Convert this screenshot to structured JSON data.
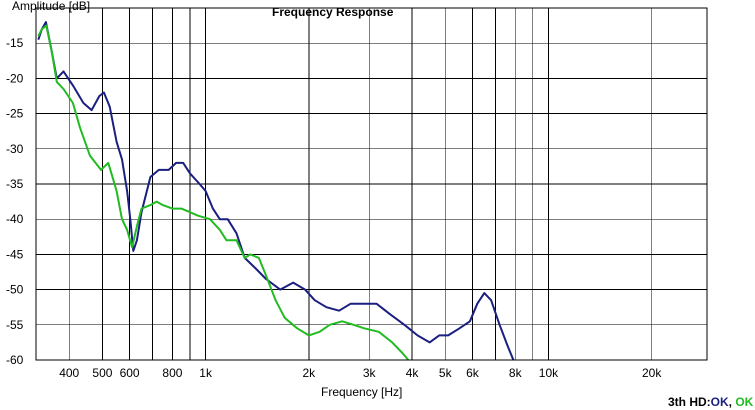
{
  "chart_data": {
    "type": "line",
    "title": "Frequency Response",
    "xlabel": "Frequency [Hz]",
    "ylabel": "Amplitude [dB]",
    "xscale": "log",
    "xlim": [
      320,
      29000
    ],
    "ylim": [
      -60,
      -10
    ],
    "grid": true,
    "x_ticks": [
      {
        "value": 400,
        "label": "400"
      },
      {
        "value": 500,
        "label": "500"
      },
      {
        "value": 600,
        "label": "600"
      },
      {
        "value": 800,
        "label": "800"
      },
      {
        "value": 1000,
        "label": "1k"
      },
      {
        "value": 2000,
        "label": "2k"
      },
      {
        "value": 3000,
        "label": "3k"
      },
      {
        "value": 4000,
        "label": "4k"
      },
      {
        "value": 5000,
        "label": "5k"
      },
      {
        "value": 6000,
        "label": "6k"
      },
      {
        "value": 8000,
        "label": "8k"
      },
      {
        "value": 10000,
        "label": "10k"
      },
      {
        "value": 20000,
        "label": "20k"
      }
    ],
    "x_minor_grid": [
      700,
      900,
      7000,
      9000
    ],
    "y_ticks": [
      -15,
      -20,
      -25,
      -30,
      -35,
      -40,
      -45,
      -50,
      -55,
      -60
    ],
    "series": [
      {
        "name": "Blue",
        "color": "#1a1f80",
        "points": [
          [
            325,
            -14.5
          ],
          [
            333,
            -13
          ],
          [
            342,
            -12
          ],
          [
            355,
            -16
          ],
          [
            368,
            -20
          ],
          [
            385,
            -19
          ],
          [
            410,
            -21
          ],
          [
            440,
            -23.5
          ],
          [
            465,
            -24.5
          ],
          [
            490,
            -22.5
          ],
          [
            505,
            -22
          ],
          [
            525,
            -24
          ],
          [
            550,
            -29
          ],
          [
            570,
            -31.5
          ],
          [
            590,
            -36
          ],
          [
            603,
            -40
          ],
          [
            615,
            -44.5
          ],
          [
            630,
            -43
          ],
          [
            650,
            -39
          ],
          [
            690,
            -34
          ],
          [
            730,
            -33
          ],
          [
            780,
            -33
          ],
          [
            820,
            -32
          ],
          [
            860,
            -32
          ],
          [
            900,
            -33.5
          ],
          [
            960,
            -35
          ],
          [
            1000,
            -36
          ],
          [
            1050,
            -38.5
          ],
          [
            1100,
            -40
          ],
          [
            1160,
            -40
          ],
          [
            1230,
            -42
          ],
          [
            1300,
            -45.5
          ],
          [
            1400,
            -47
          ],
          [
            1500,
            -48.5
          ],
          [
            1650,
            -50
          ],
          [
            1800,
            -49
          ],
          [
            1950,
            -50
          ],
          [
            2080,
            -51.5
          ],
          [
            2250,
            -52.5
          ],
          [
            2450,
            -53
          ],
          [
            2650,
            -52
          ],
          [
            2900,
            -52
          ],
          [
            3150,
            -52
          ],
          [
            3450,
            -53.5
          ],
          [
            3800,
            -55
          ],
          [
            4150,
            -56.5
          ],
          [
            4500,
            -57.5
          ],
          [
            4800,
            -56.5
          ],
          [
            5100,
            -56.5
          ],
          [
            5500,
            -55.5
          ],
          [
            5900,
            -54.5
          ],
          [
            6200,
            -52
          ],
          [
            6500,
            -50.5
          ],
          [
            6800,
            -51.5
          ],
          [
            7200,
            -55
          ],
          [
            7600,
            -58
          ],
          [
            7900,
            -60
          ]
        ]
      },
      {
        "name": "Green",
        "color": "#22bb22",
        "points": [
          [
            325,
            -14
          ],
          [
            333,
            -13
          ],
          [
            343,
            -12.5
          ],
          [
            355,
            -16
          ],
          [
            368,
            -20.5
          ],
          [
            385,
            -21.5
          ],
          [
            410,
            -23.5
          ],
          [
            430,
            -27
          ],
          [
            460,
            -31
          ],
          [
            495,
            -33
          ],
          [
            520,
            -32
          ],
          [
            550,
            -36
          ],
          [
            570,
            -40
          ],
          [
            590,
            -41.5
          ],
          [
            610,
            -44
          ],
          [
            630,
            -41
          ],
          [
            650,
            -38.5
          ],
          [
            690,
            -38
          ],
          [
            720,
            -37.5
          ],
          [
            750,
            -38
          ],
          [
            800,
            -38.5
          ],
          [
            850,
            -38.5
          ],
          [
            900,
            -39
          ],
          [
            950,
            -39.5
          ],
          [
            1030,
            -40
          ],
          [
            1100,
            -41.5
          ],
          [
            1150,
            -43
          ],
          [
            1230,
            -43
          ],
          [
            1300,
            -45.5
          ],
          [
            1350,
            -45
          ],
          [
            1430,
            -45.5
          ],
          [
            1500,
            -48
          ],
          [
            1600,
            -51.5
          ],
          [
            1700,
            -54
          ],
          [
            1850,
            -55.5
          ],
          [
            2000,
            -56.5
          ],
          [
            2150,
            -56
          ],
          [
            2300,
            -55
          ],
          [
            2500,
            -54.5
          ],
          [
            2700,
            -55
          ],
          [
            2900,
            -55.5
          ],
          [
            3200,
            -56
          ],
          [
            3500,
            -57.5
          ],
          [
            3750,
            -59
          ],
          [
            3900,
            -60
          ]
        ]
      }
    ]
  },
  "status": {
    "prefix": "3th HD:",
    "first": "OK",
    "sep": ", ",
    "second": "OK",
    "first_color": "#1a1f80",
    "second_color": "#22bb22"
  }
}
